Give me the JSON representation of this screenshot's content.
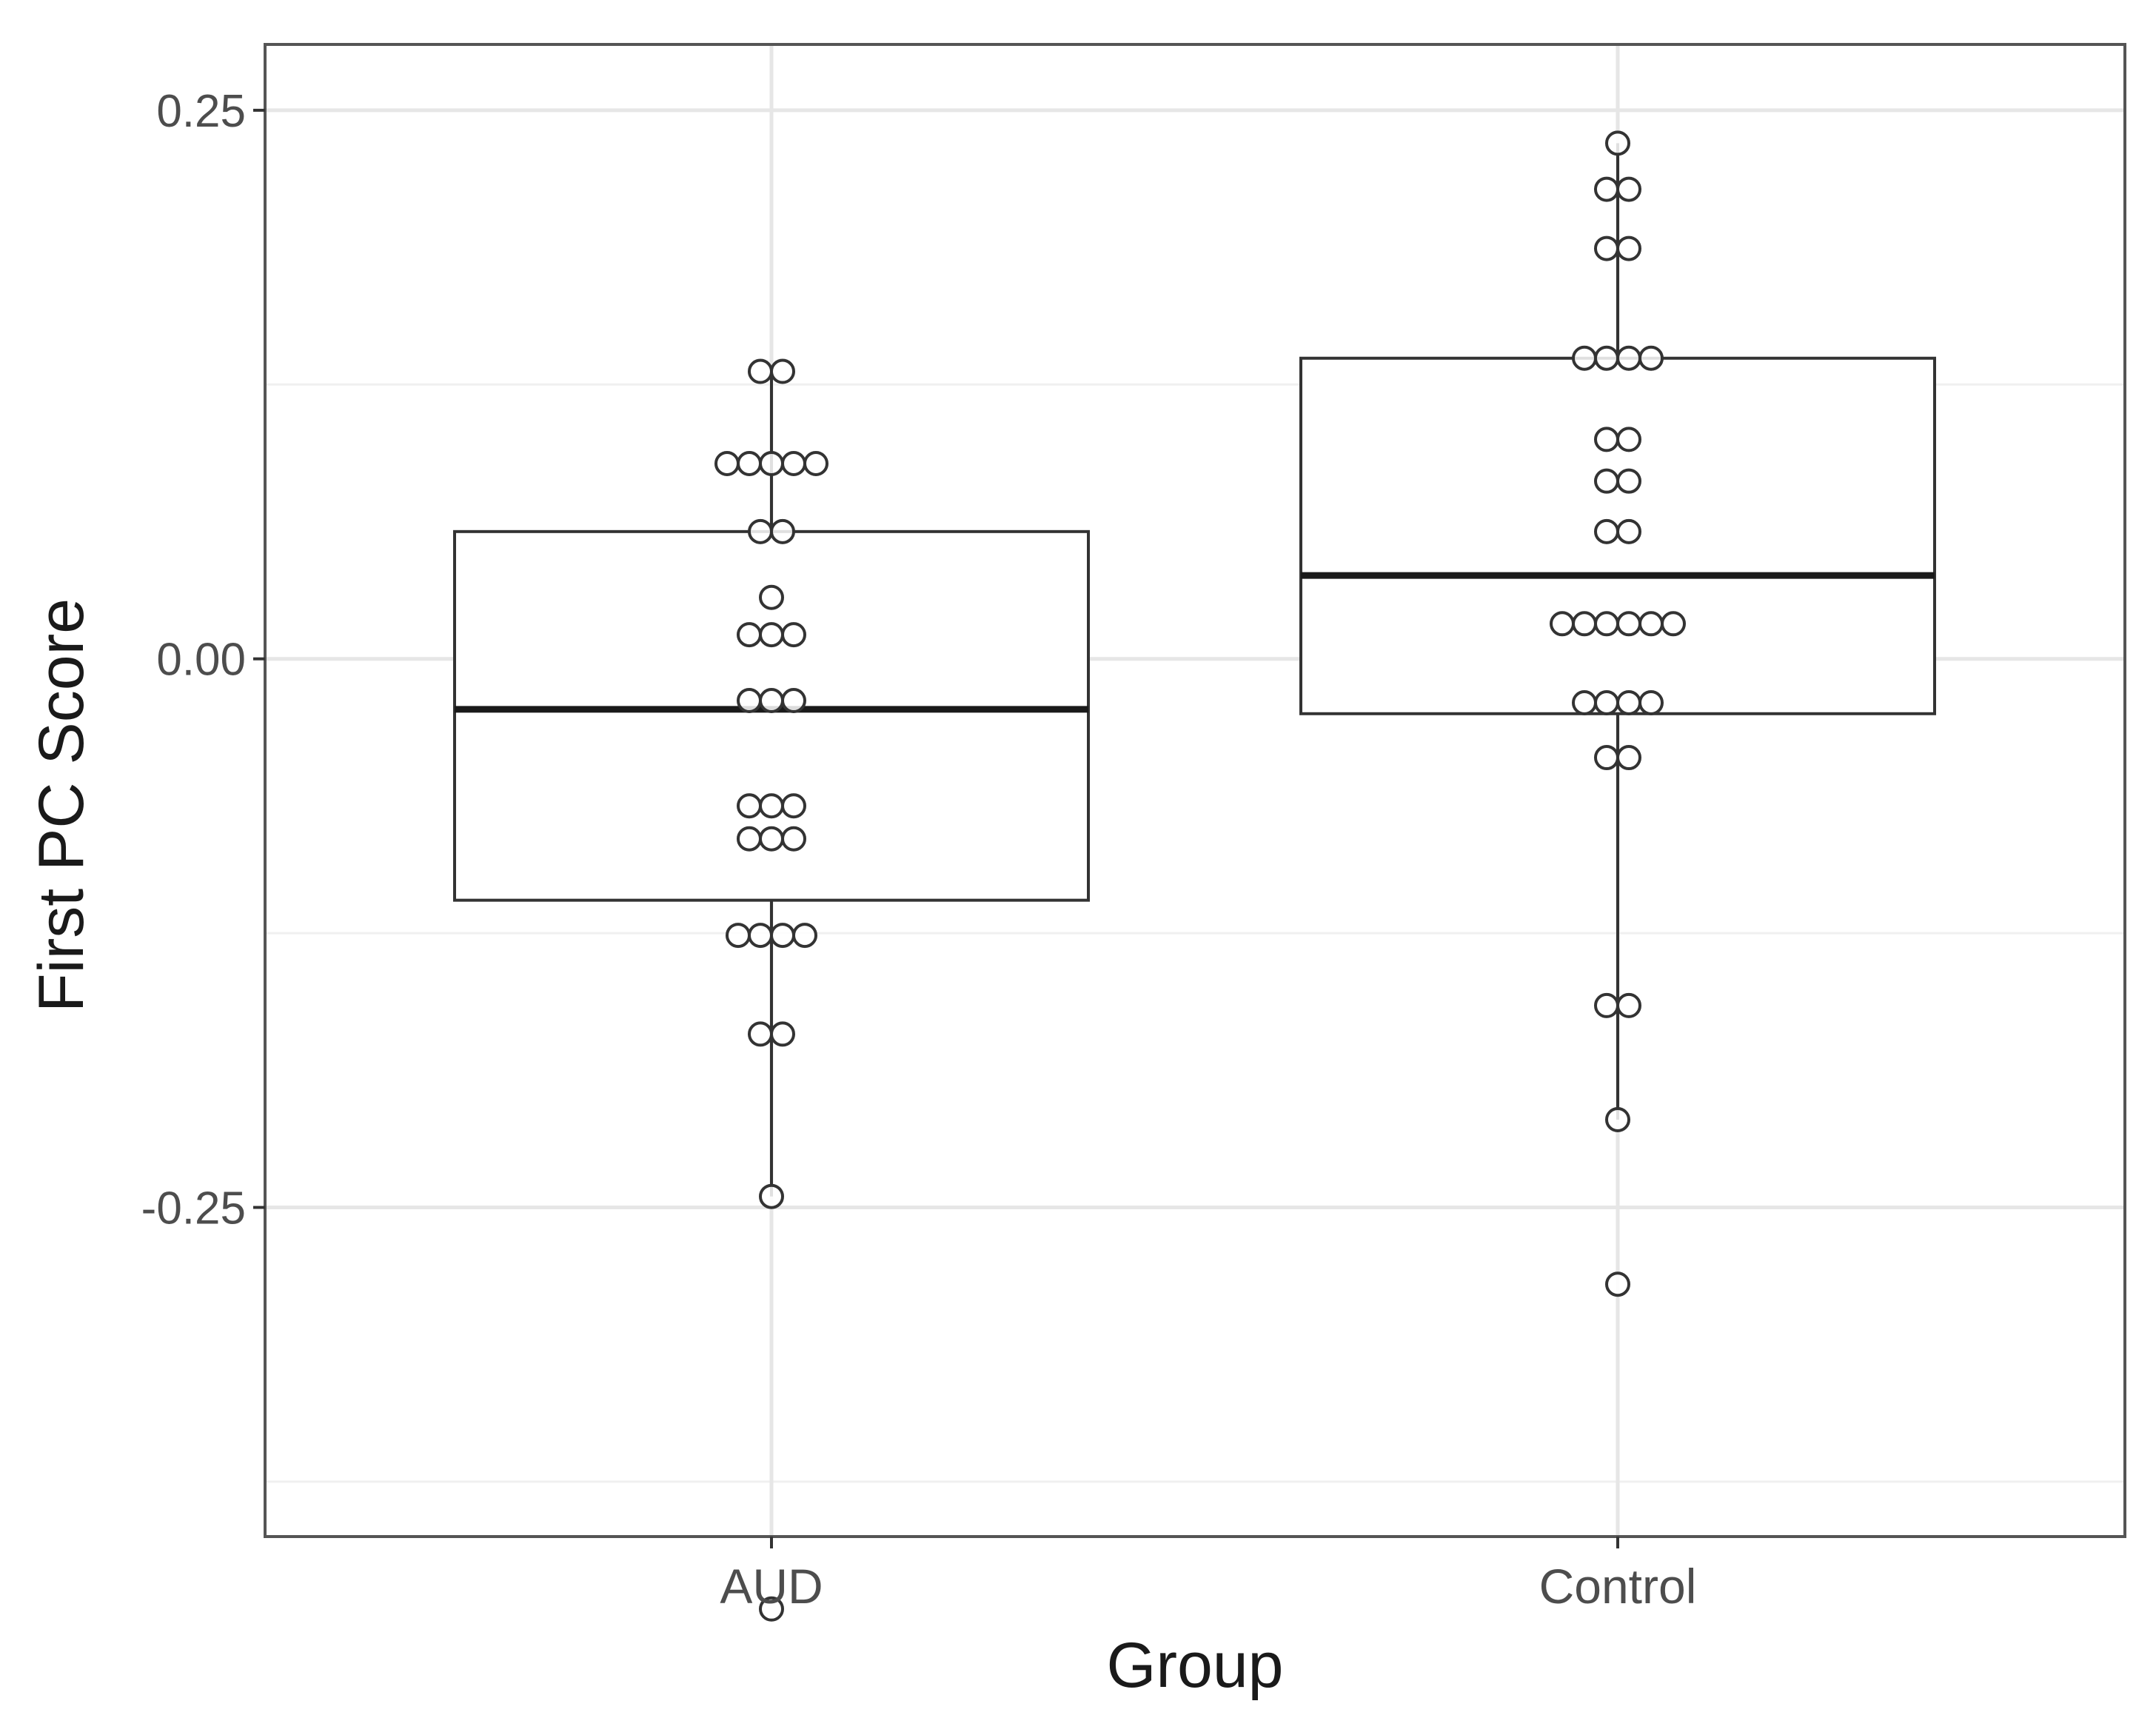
{
  "chart_data": {
    "type": "box",
    "xlabel": "Group",
    "ylabel": "First PC Score",
    "categories": [
      "AUD",
      "Control"
    ],
    "ylim": [
      -0.4,
      0.28
    ],
    "yticks": [
      0.25,
      0.0,
      -0.25
    ],
    "ytick_labels": [
      "0.25",
      "0.00",
      "-0.25"
    ],
    "grid": true,
    "boxes": [
      {
        "category": "AUD",
        "q1": -0.11,
        "median": -0.023,
        "q3": 0.058,
        "whisker_low": -0.245,
        "whisker_high": 0.131
      },
      {
        "category": "Control",
        "q1": -0.025,
        "median": 0.038,
        "q3": 0.137,
        "whisker_low": -0.21,
        "whisker_high": 0.235
      }
    ],
    "points": [
      {
        "category": "AUD",
        "values": [
          0.131,
          0.131,
          0.089,
          0.089,
          0.089,
          0.089,
          0.089,
          0.058,
          0.058,
          0.028,
          0.011,
          0.011,
          0.011,
          -0.019,
          -0.019,
          -0.019,
          -0.067,
          -0.067,
          -0.067,
          -0.082,
          -0.082,
          -0.082,
          -0.126,
          -0.126,
          -0.126,
          -0.126,
          -0.171,
          -0.171,
          -0.245,
          -0.433
        ]
      },
      {
        "category": "Control",
        "values": [
          0.235,
          0.214,
          0.214,
          0.187,
          0.187,
          0.137,
          0.137,
          0.137,
          0.137,
          0.1,
          0.1,
          0.081,
          0.081,
          0.058,
          0.058,
          0.016,
          0.016,
          0.016,
          0.016,
          0.016,
          0.016,
          -0.02,
          -0.02,
          -0.02,
          -0.02,
          -0.045,
          -0.045,
          -0.158,
          -0.158,
          -0.21,
          -0.285
        ]
      }
    ]
  }
}
